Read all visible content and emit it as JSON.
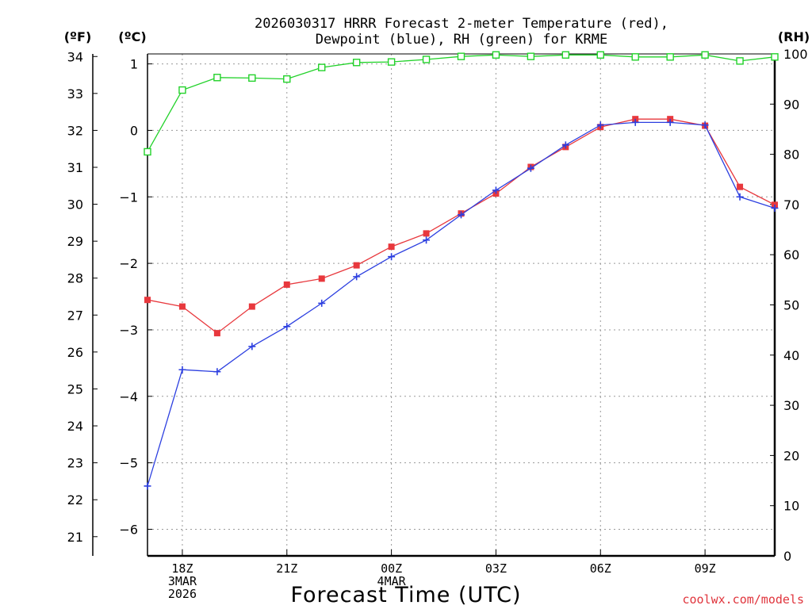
{
  "chart_data": {
    "type": "line",
    "title_line1": "2026030317 HRRR Forecast 2-meter Temperature (red),",
    "title_line2": "Dewpoint (blue), RH (green) for KRME",
    "xlabel": "Forecast Time (UTC)",
    "credit": "coolwx.com/models",
    "unit_labels": {
      "fahrenheit": "(ºF)",
      "celsius": "(ºC)",
      "rh": "(RH)"
    },
    "x_hours": [
      17,
      18,
      19,
      20,
      21,
      22,
      23,
      24,
      25,
      26,
      27,
      28,
      29,
      30,
      31,
      32,
      33,
      34,
      35
    ],
    "x_range": [
      17,
      35
    ],
    "x_ticks": [
      {
        "hour": 18,
        "lines": [
          "18Z",
          "3MAR",
          "2026"
        ]
      },
      {
        "hour": 21,
        "lines": [
          "21Z"
        ]
      },
      {
        "hour": 24,
        "lines": [
          "00Z",
          "4MAR"
        ]
      },
      {
        "hour": 27,
        "lines": [
          "03Z"
        ]
      },
      {
        "hour": 30,
        "lines": [
          "06Z"
        ]
      },
      {
        "hour": 33,
        "lines": [
          "09Z"
        ]
      }
    ],
    "celsius_axis": {
      "range": [
        -6.4,
        1.15
      ],
      "ticks": [
        1,
        0,
        -1,
        -2,
        -3,
        -4,
        -5,
        -6
      ],
      "tick_labels": [
        "1",
        "0",
        "−1",
        "−2",
        "−3",
        "−4",
        "−5",
        "−6"
      ]
    },
    "fahrenheit_axis": {
      "ticks": [
        34,
        33,
        32,
        31,
        30,
        29,
        28,
        27,
        26,
        25,
        24,
        23,
        22,
        21
      ],
      "tick_labels": [
        "34",
        "33",
        "32",
        "31",
        "30",
        "29",
        "28",
        "27",
        "26",
        "25",
        "24",
        "23",
        "22",
        "21"
      ]
    },
    "rh_axis": {
      "range": [
        0,
        100
      ],
      "ticks": [
        100,
        90,
        80,
        70,
        60,
        50,
        40,
        30,
        20,
        10,
        0
      ],
      "tick_labels": [
        "100",
        "90",
        "80",
        "70",
        "60",
        "50",
        "40",
        "30",
        "20",
        "10",
        "0"
      ]
    },
    "series": [
      {
        "name": "Temperature",
        "axis": "celsius",
        "color": "#e8383d",
        "marker": "filled-square",
        "values": [
          -2.55,
          -2.65,
          -3.05,
          -2.65,
          -2.32,
          -2.23,
          -2.03,
          -1.75,
          -1.55,
          -1.25,
          -0.95,
          -0.55,
          -0.25,
          0.05,
          0.17,
          0.17,
          0.07,
          -0.85,
          -1.12
        ]
      },
      {
        "name": "Dewpoint",
        "axis": "celsius",
        "color": "#2c3fe0",
        "marker": "plus",
        "values": [
          -5.35,
          -3.6,
          -3.63,
          -3.25,
          -2.95,
          -2.6,
          -2.2,
          -1.9,
          -1.65,
          -1.27,
          -0.9,
          -0.57,
          -0.22,
          0.08,
          0.12,
          0.12,
          0.08,
          -1.0,
          -1.17
        ]
      },
      {
        "name": "RH",
        "axis": "rh",
        "color": "#22d22a",
        "marker": "open-square",
        "values": [
          80.5,
          92.8,
          95.3,
          95.2,
          95.0,
          97.3,
          98.3,
          98.4,
          98.9,
          99.5,
          99.8,
          99.5,
          99.8,
          99.8,
          99.4,
          99.4,
          99.8,
          98.6,
          99.4
        ]
      }
    ]
  }
}
